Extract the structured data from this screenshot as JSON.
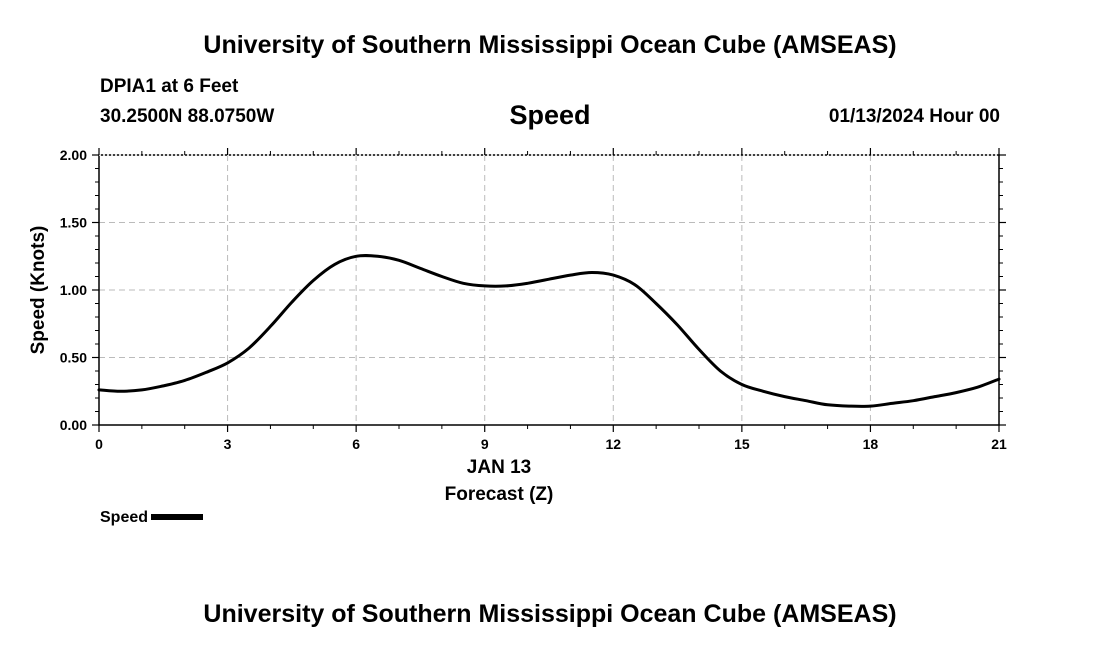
{
  "header": {
    "title": "University of Southern Mississippi Ocean Cube (AMSEAS)",
    "station": "DPIA1 at 6 Feet",
    "coords": "30.2500N  88.0750W",
    "chart_title": "Speed",
    "datetime": "01/13/2024 Hour 00"
  },
  "footer": {
    "title": "University of Southern Mississippi Ocean Cube (AMSEAS)"
  },
  "legend": {
    "label": "Speed"
  },
  "chart_data": {
    "type": "line",
    "title": "Speed",
    "xlabel_date": "JAN 13",
    "xlabel": "Forecast (Z)",
    "ylabel": "Speed (Knots)",
    "xlim": [
      0,
      21
    ],
    "ylim": [
      0,
      2
    ],
    "xticks": [
      0,
      3,
      6,
      9,
      12,
      15,
      18,
      21
    ],
    "yticks": [
      0,
      0.5,
      1.0,
      1.5,
      2.0
    ],
    "ytick_labels": [
      "0.00",
      "0.50",
      "1.00",
      "1.50",
      "2.00"
    ],
    "grid": true,
    "series": [
      {
        "name": "Speed",
        "color": "#000000",
        "x": [
          0,
          0.5,
          1,
          1.5,
          2,
          2.5,
          3,
          3.5,
          4,
          4.5,
          5,
          5.5,
          6,
          6.5,
          7,
          7.5,
          8,
          8.5,
          9,
          9.5,
          10,
          10.5,
          11,
          11.5,
          12,
          12.5,
          13,
          13.5,
          14,
          14.5,
          15,
          15.5,
          16,
          16.5,
          17,
          17.5,
          18,
          18.5,
          19,
          19.5,
          20,
          20.5,
          21
        ],
        "values": [
          0.26,
          0.25,
          0.26,
          0.29,
          0.33,
          0.39,
          0.46,
          0.57,
          0.73,
          0.91,
          1.07,
          1.19,
          1.25,
          1.25,
          1.22,
          1.16,
          1.1,
          1.05,
          1.03,
          1.03,
          1.05,
          1.08,
          1.11,
          1.13,
          1.11,
          1.04,
          0.9,
          0.74,
          0.56,
          0.4,
          0.3,
          0.25,
          0.21,
          0.18,
          0.15,
          0.14,
          0.14,
          0.16,
          0.18,
          0.21,
          0.24,
          0.28,
          0.34
        ]
      }
    ]
  }
}
